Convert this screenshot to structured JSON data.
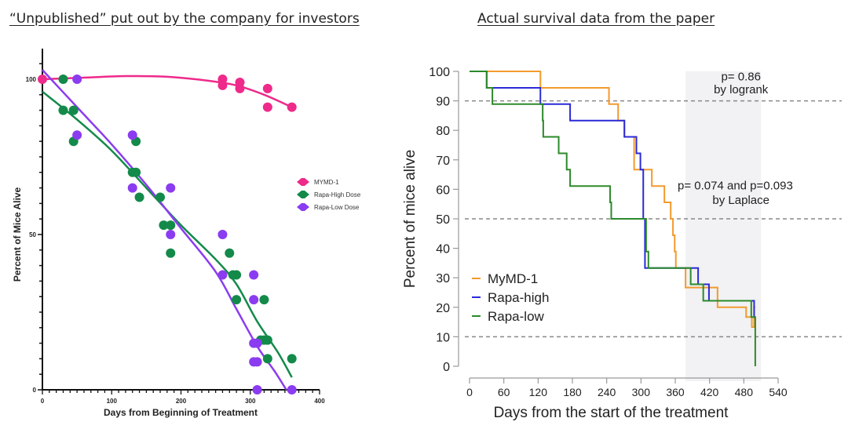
{
  "titles": {
    "left": "“Unpublished” put out by the company for investors",
    "right": "Actual survival data from the paper"
  },
  "chart_data": [
    {
      "type": "scatter",
      "title": "“Unpublished” put out by the company for investors",
      "xlabel": "Days from Beginning of Treatment",
      "ylabel": "Percent of Mice Alive",
      "xlim": [
        0,
        400
      ],
      "ylim": [
        0,
        100
      ],
      "xticks": [
        "0",
        "100",
        "200",
        "300",
        "400"
      ],
      "yticks": [
        "0",
        "50",
        "100"
      ],
      "legend_position": "right",
      "series": [
        {
          "name": "MYMD-1",
          "color": "#ee2a8a",
          "points": [
            [
              0,
              100
            ],
            [
              260,
              100
            ],
            [
              260,
              98
            ],
            [
              285,
              99
            ],
            [
              285,
              97
            ],
            [
              325,
              97
            ],
            [
              325,
              91
            ],
            [
              360,
              91
            ]
          ],
          "fit": [
            [
              0,
              100
            ],
            [
              60,
              100.5
            ],
            [
              120,
              101
            ],
            [
              180,
              100.8
            ],
            [
              240,
              99.5
            ],
            [
              280,
              98
            ],
            [
              320,
              95
            ],
            [
              360,
              91
            ]
          ]
        },
        {
          "name": "Rapa-High Dose",
          "color": "#138a4a",
          "points": [
            [
              30,
              100
            ],
            [
              30,
              90
            ],
            [
              45,
              90
            ],
            [
              45,
              80
            ],
            [
              135,
              80
            ],
            [
              130,
              70
            ],
            [
              135,
              70
            ],
            [
              140,
              62
            ],
            [
              170,
              62
            ],
            [
              175,
              53
            ],
            [
              185,
              53
            ],
            [
              185,
              44
            ],
            [
              270,
              44
            ],
            [
              275,
              37
            ],
            [
              280,
              37
            ],
            [
              280,
              29
            ],
            [
              320,
              29
            ],
            [
              315,
              16
            ],
            [
              320,
              16
            ],
            [
              325,
              16
            ],
            [
              325,
              10
            ],
            [
              360,
              10
            ]
          ],
          "fit": [
            [
              0,
              96
            ],
            [
              50,
              87
            ],
            [
              100,
              77
            ],
            [
              150,
              65
            ],
            [
              200,
              53
            ],
            [
              250,
              42
            ],
            [
              280,
              34
            ],
            [
              310,
              22
            ],
            [
              340,
              12
            ],
            [
              360,
              4
            ]
          ]
        },
        {
          "name": "Rapa-Low Dose",
          "color": "#8b3cf0",
          "points": [
            [
              50,
              100
            ],
            [
              50,
              82
            ],
            [
              130,
              82
            ],
            [
              130,
              65
            ],
            [
              185,
              65
            ],
            [
              185,
              50
            ],
            [
              260,
              50
            ],
            [
              260,
              37
            ],
            [
              305,
              37
            ],
            [
              305,
              29
            ],
            [
              305,
              15
            ],
            [
              310,
              15
            ],
            [
              305,
              9
            ],
            [
              310,
              9
            ],
            [
              310,
              0
            ],
            [
              360,
              0
            ]
          ],
          "fit": [
            [
              0,
              103
            ],
            [
              50,
              91
            ],
            [
              100,
              79
            ],
            [
              150,
              66
            ],
            [
              200,
              52
            ],
            [
              250,
              38
            ],
            [
              280,
              26
            ],
            [
              310,
              14
            ],
            [
              335,
              6
            ],
            [
              352,
              0
            ]
          ]
        }
      ]
    },
    {
      "type": "line",
      "subtype": "kaplan-meier-step",
      "title": "Actual survival data from the paper",
      "xlabel": "Days from the start of the treatment",
      "ylabel": "Percent of mice alive",
      "xlim": [
        0,
        540
      ],
      "ylim": [
        0,
        100
      ],
      "xticks": [
        "0",
        "60",
        "120",
        "180",
        "240",
        "300",
        "360",
        "420",
        "480",
        "540"
      ],
      "yticks": [
        "0",
        "10",
        "20",
        "30",
        "40",
        "50",
        "60",
        "70",
        "80",
        "90",
        "100"
      ],
      "reference_lines_y": [
        90,
        50,
        10
      ],
      "shaded_region_x": [
        378,
        510
      ],
      "legend_position": "bottom-left",
      "annotations": [
        {
          "text": "p= 0.86",
          "x": 475,
          "y": 97
        },
        {
          "text": "by logrank",
          "x": 475,
          "y": 92.5
        },
        {
          "text": "p= 0.074 and p=0.093",
          "x": 465,
          "y": 60
        },
        {
          "text": "by Laplace",
          "x": 475,
          "y": 55
        }
      ],
      "series": [
        {
          "name": "MyMD-1",
          "color": "#f39a2e",
          "steps": [
            [
              0,
              100
            ],
            [
              124,
              94.4
            ],
            [
              244,
              88.9
            ],
            [
              260,
              83.3
            ],
            [
              271,
              77.8
            ],
            [
              288,
              66.7
            ],
            [
              290,
              66.7
            ],
            [
              319,
              61.1
            ],
            [
              341,
              55.6
            ],
            [
              352,
              50
            ],
            [
              356,
              44.4
            ],
            [
              359,
              38.9
            ],
            [
              361,
              33.3
            ],
            [
              378,
              26.7
            ],
            [
              434,
              20
            ],
            [
              484,
              16.7
            ],
            [
              494,
              13.3
            ],
            [
              498,
              20
            ],
            [
              500,
              20
            ]
          ]
        },
        {
          "name": "Rapa-high",
          "color": "#2a2ad8",
          "steps": [
            [
              0,
              100
            ],
            [
              30,
              94.4
            ],
            [
              124,
              88.9
            ],
            [
              176,
              83.3
            ],
            [
              271,
              77.8
            ],
            [
              292,
              72.2
            ],
            [
              299,
              66.7
            ],
            [
              304,
              50
            ],
            [
              307,
              33.3
            ],
            [
              400,
              27.8
            ],
            [
              419,
              22.2
            ],
            [
              498,
              16.7
            ],
            [
              500,
              16.7
            ]
          ]
        },
        {
          "name": "Rapa-low",
          "color": "#2b8a2b",
          "steps": [
            [
              0,
              100
            ],
            [
              30,
              94.4
            ],
            [
              40,
              88.9
            ],
            [
              128,
              83.3
            ],
            [
              129,
              77.8
            ],
            [
              156,
              72.2
            ],
            [
              170,
              66.7
            ],
            [
              176,
              61.1
            ],
            [
              246,
              55.6
            ],
            [
              248,
              50
            ],
            [
              305,
              50
            ],
            [
              309,
              38.9
            ],
            [
              313,
              33.3
            ],
            [
              387,
              27.8
            ],
            [
              409,
              22.2
            ],
            [
              493,
              16.7
            ],
            [
              500,
              16.7
            ],
            [
              500,
              0
            ]
          ]
        }
      ]
    }
  ]
}
